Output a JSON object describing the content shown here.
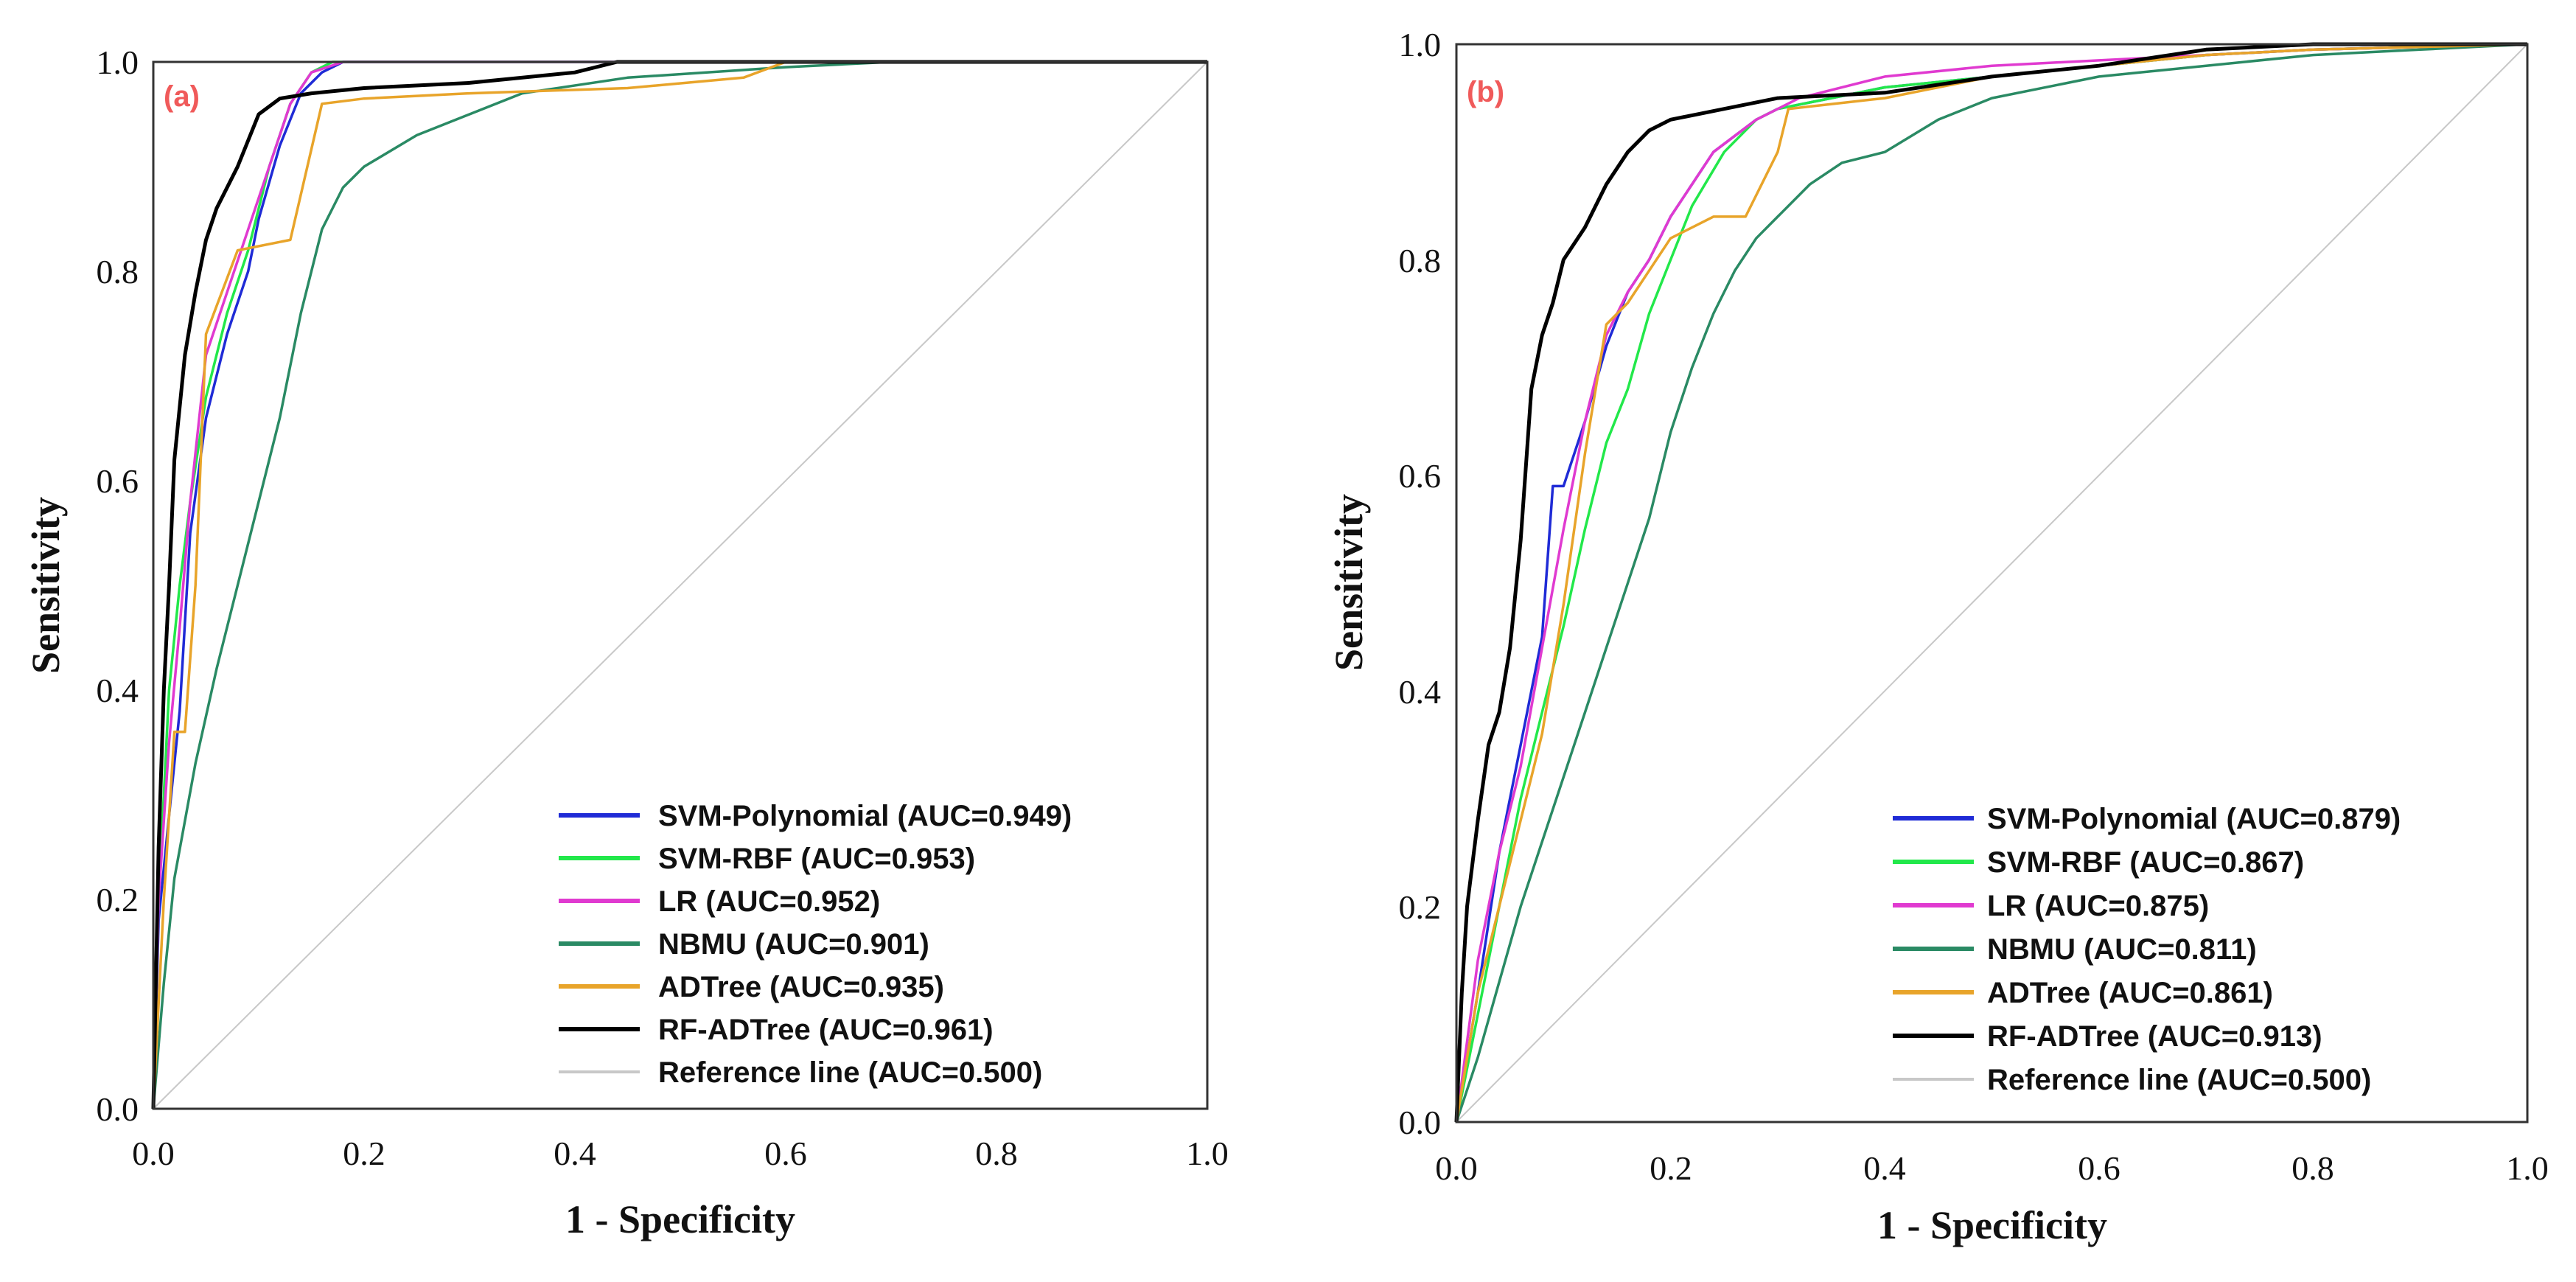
{
  "chart_data": [
    {
      "type": "line",
      "panel_label": "(a)",
      "xlabel": "1 - Specificity",
      "ylabel": "Sensitivity",
      "xlim": [
        0,
        1
      ],
      "ylim": [
        0,
        1
      ],
      "xticks": [
        "0.0",
        "0.2",
        "0.4",
        "0.6",
        "0.8",
        "1.0"
      ],
      "yticks": [
        "0.0",
        "0.2",
        "0.4",
        "0.6",
        "0.8",
        "1.0"
      ],
      "legend_position": "bottom-right",
      "series": [
        {
          "name": "SVM-Polynomial (AUC=0.949)",
          "color": "#1f2bd6",
          "x": [
            0,
            0.005,
            0.015,
            0.025,
            0.035,
            0.05,
            0.07,
            0.09,
            0.1,
            0.12,
            0.14,
            0.16,
            0.18,
            0.22,
            0.3,
            0.5,
            0.7,
            1.0
          ],
          "y": [
            0,
            0.18,
            0.28,
            0.38,
            0.55,
            0.66,
            0.74,
            0.8,
            0.85,
            0.92,
            0.97,
            0.99,
            1.0,
            1.0,
            1.0,
            1.0,
            1.0,
            1.0
          ]
        },
        {
          "name": "SVM-RBF (AUC=0.953)",
          "color": "#22e84a",
          "x": [
            0,
            0.005,
            0.015,
            0.025,
            0.035,
            0.05,
            0.07,
            0.09,
            0.11,
            0.13,
            0.15,
            0.17,
            0.2,
            0.3,
            0.5,
            1.0
          ],
          "y": [
            0,
            0.2,
            0.4,
            0.5,
            0.58,
            0.68,
            0.76,
            0.82,
            0.9,
            0.96,
            0.99,
            1.0,
            1.0,
            1.0,
            1.0,
            1.0
          ]
        },
        {
          "name": "LR (AUC=0.952)",
          "color": "#e03ad0",
          "x": [
            0,
            0.005,
            0.015,
            0.025,
            0.035,
            0.05,
            0.07,
            0.09,
            0.11,
            0.13,
            0.15,
            0.18,
            0.22,
            0.3,
            0.5,
            1.0
          ],
          "y": [
            0,
            0.2,
            0.35,
            0.46,
            0.58,
            0.72,
            0.78,
            0.84,
            0.9,
            0.96,
            0.99,
            1.0,
            1.0,
            1.0,
            1.0,
            1.0
          ]
        },
        {
          "name": "NBMU (AUC=0.901)",
          "color": "#2a8a64",
          "x": [
            0,
            0.01,
            0.02,
            0.04,
            0.06,
            0.08,
            0.1,
            0.12,
            0.14,
            0.16,
            0.18,
            0.2,
            0.25,
            0.3,
            0.35,
            0.45,
            0.6,
            0.7,
            1.0
          ],
          "y": [
            0,
            0.12,
            0.22,
            0.33,
            0.42,
            0.5,
            0.58,
            0.66,
            0.76,
            0.84,
            0.88,
            0.9,
            0.93,
            0.95,
            0.97,
            0.985,
            0.995,
            1.0,
            1.0
          ]
        },
        {
          "name": "ADTree (AUC=0.935)",
          "color": "#e8a42a",
          "x": [
            0,
            0.01,
            0.02,
            0.03,
            0.04,
            0.05,
            0.08,
            0.13,
            0.16,
            0.2,
            0.3,
            0.45,
            0.56,
            0.6,
            1.0
          ],
          "y": [
            0,
            0.2,
            0.36,
            0.36,
            0.5,
            0.74,
            0.82,
            0.83,
            0.96,
            0.965,
            0.97,
            0.975,
            0.985,
            1.0,
            1.0
          ]
        },
        {
          "name": "RF-ADTree (AUC=0.961)",
          "color": "#000000",
          "x": [
            0,
            0.005,
            0.01,
            0.015,
            0.02,
            0.03,
            0.04,
            0.05,
            0.06,
            0.08,
            0.1,
            0.12,
            0.15,
            0.2,
            0.3,
            0.4,
            0.44,
            0.6,
            1.0
          ],
          "y": [
            0,
            0.25,
            0.4,
            0.5,
            0.62,
            0.72,
            0.78,
            0.83,
            0.86,
            0.9,
            0.95,
            0.965,
            0.97,
            0.975,
            0.98,
            0.99,
            1.0,
            1.0,
            1.0
          ]
        },
        {
          "name": "Reference line (AUC=0.500)",
          "color": "#c8c8c8",
          "x": [
            0,
            1
          ],
          "y": [
            0,
            1
          ]
        }
      ]
    },
    {
      "type": "line",
      "panel_label": "(b)",
      "xlabel": "1 - Specificity",
      "ylabel": "Sensitivity",
      "xlim": [
        0,
        1
      ],
      "ylim": [
        0,
        1
      ],
      "xticks": [
        "0.0",
        "0.2",
        "0.4",
        "0.6",
        "0.8",
        "1.0"
      ],
      "yticks": [
        "0.0",
        "0.2",
        "0.4",
        "0.6",
        "0.8",
        "1.0"
      ],
      "legend_position": "bottom-right",
      "series": [
        {
          "name": "SVM-Polynomial (AUC=0.879)",
          "color": "#1f2bd6",
          "x": [
            0,
            0.02,
            0.04,
            0.06,
            0.08,
            0.09,
            0.1,
            0.12,
            0.14,
            0.16,
            0.18,
            0.2,
            0.24,
            0.28,
            0.3,
            0.35,
            0.4,
            0.5,
            0.6,
            0.7,
            0.8,
            1.0
          ],
          "y": [
            0,
            0.12,
            0.25,
            0.35,
            0.45,
            0.59,
            0.59,
            0.65,
            0.72,
            0.77,
            0.8,
            0.84,
            0.9,
            0.93,
            0.94,
            0.95,
            0.96,
            0.97,
            0.98,
            0.99,
            0.995,
            1.0
          ]
        },
        {
          "name": "SVM-RBF (AUC=0.867)",
          "color": "#22e84a",
          "x": [
            0,
            0.02,
            0.04,
            0.06,
            0.08,
            0.1,
            0.12,
            0.14,
            0.16,
            0.18,
            0.2,
            0.22,
            0.25,
            0.28,
            0.3,
            0.35,
            0.4,
            0.5,
            0.6,
            0.7,
            0.8,
            1.0
          ],
          "y": [
            0,
            0.1,
            0.2,
            0.3,
            0.38,
            0.46,
            0.55,
            0.63,
            0.68,
            0.75,
            0.8,
            0.85,
            0.9,
            0.93,
            0.94,
            0.95,
            0.96,
            0.97,
            0.98,
            0.99,
            0.995,
            1.0
          ]
        },
        {
          "name": "LR (AUC=0.875)",
          "color": "#e03ad0",
          "x": [
            0,
            0.02,
            0.04,
            0.06,
            0.08,
            0.1,
            0.12,
            0.14,
            0.16,
            0.18,
            0.2,
            0.24,
            0.28,
            0.32,
            0.4,
            0.5,
            0.6,
            0.7,
            0.8,
            1.0
          ],
          "y": [
            0,
            0.15,
            0.25,
            0.33,
            0.44,
            0.55,
            0.65,
            0.73,
            0.77,
            0.8,
            0.84,
            0.9,
            0.93,
            0.95,
            0.97,
            0.98,
            0.985,
            0.99,
            0.995,
            1.0
          ]
        },
        {
          "name": "NBMU (AUC=0.811)",
          "color": "#2a8a64",
          "x": [
            0,
            0.02,
            0.04,
            0.06,
            0.08,
            0.1,
            0.12,
            0.14,
            0.16,
            0.18,
            0.2,
            0.22,
            0.24,
            0.26,
            0.28,
            0.3,
            0.33,
            0.36,
            0.4,
            0.45,
            0.5,
            0.6,
            0.7,
            0.8,
            0.9,
            1.0
          ],
          "y": [
            0,
            0.06,
            0.13,
            0.2,
            0.26,
            0.32,
            0.38,
            0.44,
            0.5,
            0.56,
            0.64,
            0.7,
            0.75,
            0.79,
            0.82,
            0.84,
            0.87,
            0.89,
            0.9,
            0.93,
            0.95,
            0.97,
            0.98,
            0.99,
            0.995,
            1.0
          ]
        },
        {
          "name": "ADTree (AUC=0.861)",
          "color": "#e8a42a",
          "x": [
            0,
            0.02,
            0.04,
            0.06,
            0.08,
            0.1,
            0.12,
            0.14,
            0.16,
            0.2,
            0.24,
            0.27,
            0.3,
            0.31,
            0.4,
            0.5,
            0.6,
            0.7,
            0.8,
            1.0
          ],
          "y": [
            0,
            0.12,
            0.2,
            0.28,
            0.36,
            0.48,
            0.62,
            0.74,
            0.76,
            0.82,
            0.84,
            0.84,
            0.9,
            0.94,
            0.95,
            0.97,
            0.98,
            0.99,
            0.995,
            1.0
          ]
        },
        {
          "name": "RF-ADTree (AUC=0.913)",
          "color": "#000000",
          "x": [
            0,
            0.005,
            0.01,
            0.02,
            0.03,
            0.04,
            0.05,
            0.06,
            0.07,
            0.08,
            0.09,
            0.1,
            0.12,
            0.14,
            0.16,
            0.18,
            0.2,
            0.25,
            0.3,
            0.4,
            0.5,
            0.6,
            0.7,
            0.8,
            1.0
          ],
          "y": [
            0,
            0.12,
            0.2,
            0.28,
            0.35,
            0.38,
            0.44,
            0.54,
            0.68,
            0.73,
            0.76,
            0.8,
            0.83,
            0.87,
            0.9,
            0.92,
            0.93,
            0.94,
            0.95,
            0.955,
            0.97,
            0.98,
            0.995,
            1.0,
            1.0
          ]
        },
        {
          "name": "Reference line (AUC=0.500)",
          "color": "#c8c8c8",
          "x": [
            0,
            1
          ],
          "y": [
            0,
            1
          ]
        }
      ]
    }
  ]
}
